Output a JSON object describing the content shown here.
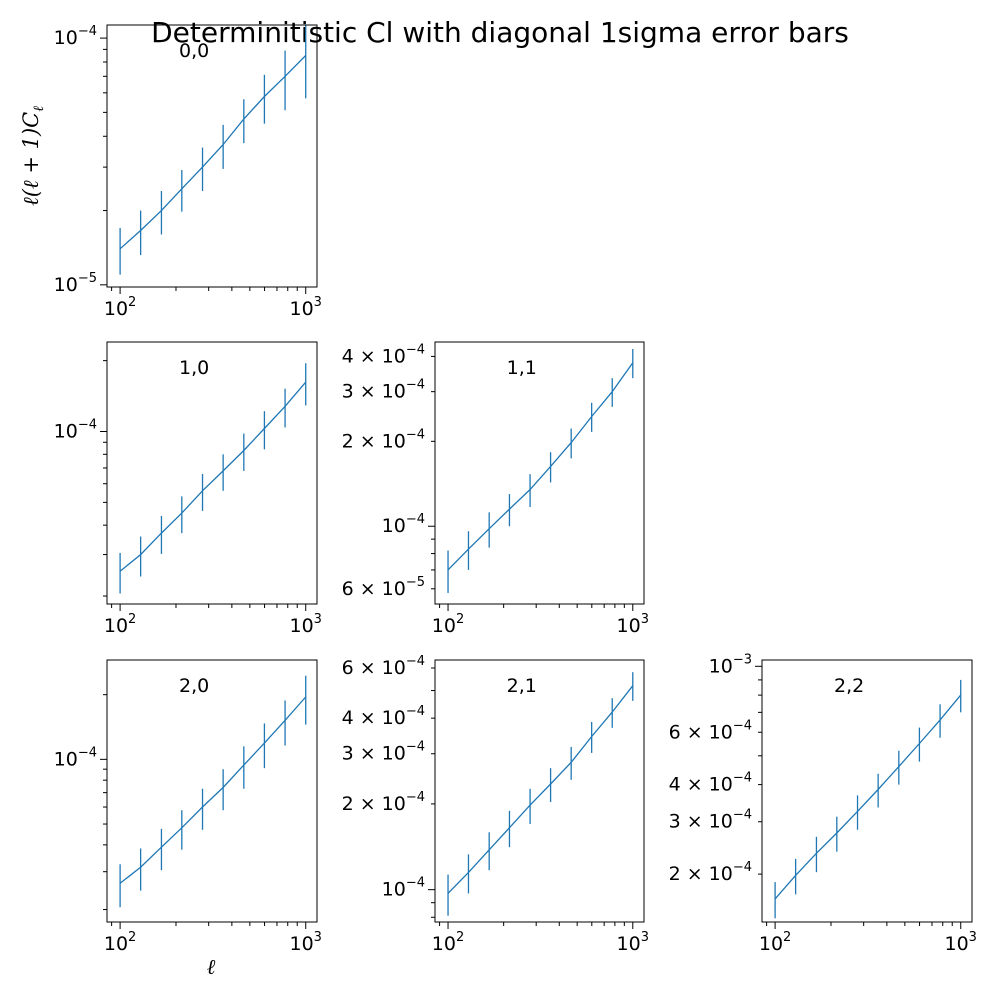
{
  "figure": {
    "title": "Determinitistic Cl with diagonal 1sigma error bars",
    "xlabel": "ℓ",
    "ylabel": "ℓ(ℓ + 1)C_ℓ",
    "line_color": "#1f77b4"
  },
  "chart_data": [
    {
      "type": "line",
      "panel_label": "0,0",
      "xscale": "log",
      "yscale": "log",
      "xlim": [
        85,
        1150
      ],
      "ylim": [
        9.8e-06,
        0.000113
      ],
      "x": [
        100,
        129,
        167,
        215,
        278,
        359,
        464,
        599,
        774,
        1000
      ],
      "y": [
        1.4e-05,
        1.66e-05,
        2e-05,
        2.45e-05,
        3e-05,
        3.7e-05,
        4.7e-05,
        5.8e-05,
        7e-05,
        8.5e-05
      ],
      "yerr": [
        3e-06,
        3.4e-06,
        4e-06,
        4.7e-06,
        6e-06,
        7.5e-06,
        9.5e-06,
        1.3e-05,
        1.9e-05,
        2.8e-05
      ],
      "xticks": [
        {
          "value": 100,
          "base": "10",
          "exp": "2"
        },
        {
          "value": 1000,
          "base": "10",
          "exp": "3"
        }
      ],
      "yticks": [
        {
          "value": 1e-05,
          "base": "10",
          "exp": "−5"
        },
        {
          "value": 0.0001,
          "base": "10",
          "exp": "−4"
        }
      ]
    },
    {
      "type": "line",
      "panel_label": "1,0",
      "xscale": "log",
      "yscale": "log",
      "xlim": [
        85,
        1150
      ],
      "ylim": [
        1.85e-05,
        0.00024
      ],
      "x": [
        100,
        129,
        167,
        215,
        278,
        359,
        464,
        599,
        774,
        1000
      ],
      "y": [
        2.55e-05,
        3e-05,
        3.7e-05,
        4.5e-05,
        5.6e-05,
        6.8e-05,
        8.3e-05,
        0.000103,
        0.000128,
        0.000162
      ],
      "yerr": [
        5e-06,
        5.8e-06,
        6.8e-06,
        8e-06,
        1e-05,
        1.2e-05,
        1.5e-05,
        1.9e-05,
        2.4e-05,
        3.3e-05
      ],
      "xticks": [
        {
          "value": 100,
          "base": "10",
          "exp": "2"
        },
        {
          "value": 1000,
          "base": "10",
          "exp": "3"
        }
      ],
      "yticks": [
        {
          "value": 0.0001,
          "base": "10",
          "exp": "−4"
        }
      ]
    },
    {
      "type": "line",
      "panel_label": "1,1",
      "xscale": "log",
      "yscale": "log",
      "xlim": [
        85,
        1150
      ],
      "ylim": [
        5.3e-05,
        0.00045
      ],
      "x": [
        100,
        129,
        167,
        215,
        278,
        359,
        464,
        599,
        774,
        1000
      ],
      "y": [
        7e-05,
        8.3e-05,
        9.8e-05,
        0.000115,
        0.000135,
        0.000163,
        0.000198,
        0.000245,
        0.0003,
        0.00038
      ],
      "yerr": [
        1.2e-05,
        1.3e-05,
        1.4e-05,
        1.5e-05,
        1.8e-05,
        2e-05,
        2.4e-05,
        2.9e-05,
        3.5e-05,
        4.5e-05
      ],
      "xticks": [
        {
          "value": 100,
          "base": "10",
          "exp": "2"
        },
        {
          "value": 1000,
          "base": "10",
          "exp": "3"
        }
      ],
      "yticks": [
        {
          "value": 6e-05,
          "base": "6 × 10",
          "exp": "−5"
        },
        {
          "value": 0.0001,
          "base": "10",
          "exp": "−4"
        },
        {
          "value": 0.0002,
          "base": "2 × 10",
          "exp": "−4"
        },
        {
          "value": 0.0003,
          "base": "3 × 10",
          "exp": "−4"
        },
        {
          "value": 0.0004,
          "base": "4 × 10",
          "exp": "−4"
        }
      ]
    },
    {
      "type": "line",
      "panel_label": "2,0",
      "xscale": "log",
      "yscale": "log",
      "xlim": [
        85,
        1150
      ],
      "ylim": [
        1.75e-05,
        0.00029
      ],
      "x": [
        100,
        129,
        167,
        215,
        278,
        359,
        464,
        599,
        774,
        1000
      ],
      "y": [
        2.65e-05,
        3.15e-05,
        3.9e-05,
        4.8e-05,
        6e-05,
        7.4e-05,
        9.4e-05,
        0.000119,
        0.000152,
        0.000195
      ],
      "yerr": [
        6e-06,
        7e-06,
        8.5e-06,
        1e-05,
        1.3e-05,
        1.6e-05,
        2.1e-05,
        2.8e-05,
        3.6e-05,
        5e-05
      ],
      "xticks": [
        {
          "value": 100,
          "base": "10",
          "exp": "2"
        },
        {
          "value": 1000,
          "base": "10",
          "exp": "3"
        }
      ],
      "yticks": [
        {
          "value": 0.0001,
          "base": "10",
          "exp": "−4"
        }
      ]
    },
    {
      "type": "line",
      "panel_label": "2,1",
      "xscale": "log",
      "yscale": "log",
      "xlim": [
        85,
        1150
      ],
      "ylim": [
        7.7e-05,
        0.00064
      ],
      "x": [
        100,
        129,
        167,
        215,
        278,
        359,
        464,
        599,
        774,
        1000
      ],
      "y": [
        9.7e-05,
        0.000115,
        0.000138,
        0.000165,
        0.000198,
        0.000235,
        0.00028,
        0.000345,
        0.00042,
        0.00052
      ],
      "yerr": [
        1.6e-05,
        1.8e-05,
        2.1e-05,
        2.4e-05,
        2.8e-05,
        3.2e-05,
        3.7e-05,
        4.3e-05,
        5e-05,
        6e-05
      ],
      "xticks": [
        {
          "value": 100,
          "base": "10",
          "exp": "2"
        },
        {
          "value": 1000,
          "base": "10",
          "exp": "3"
        }
      ],
      "yticks": [
        {
          "value": 0.0001,
          "base": "10",
          "exp": "−4"
        },
        {
          "value": 0.0002,
          "base": "2 × 10",
          "exp": "−4"
        },
        {
          "value": 0.0003,
          "base": "3 × 10",
          "exp": "−4"
        },
        {
          "value": 0.0004,
          "base": "4 × 10",
          "exp": "−4"
        },
        {
          "value": 0.0006,
          "base": "6 × 10",
          "exp": "−4"
        }
      ]
    },
    {
      "type": "line",
      "panel_label": "2,2",
      "xscale": "log",
      "yscale": "log",
      "xlim": [
        85,
        1150
      ],
      "ylim": [
        0.000138,
        0.00105
      ],
      "x": [
        100,
        129,
        167,
        215,
        278,
        359,
        464,
        599,
        774,
        1000
      ],
      "y": [
        0.000165,
        0.000198,
        0.000235,
        0.000275,
        0.000325,
        0.000385,
        0.00046,
        0.00055,
        0.00066,
        0.0008
      ],
      "yerr": [
        2.3e-05,
        2.7e-05,
        3.2e-05,
        3.7e-05,
        4.3e-05,
        5e-05,
        6e-05,
        7.2e-05,
        8.5e-05,
        0.0001
      ],
      "xticks": [
        {
          "value": 100,
          "base": "10",
          "exp": "2"
        },
        {
          "value": 1000,
          "base": "10",
          "exp": "3"
        }
      ],
      "yticks": [
        {
          "value": 0.0002,
          "base": "2 × 10",
          "exp": "−4"
        },
        {
          "value": 0.0003,
          "base": "3 × 10",
          "exp": "−4"
        },
        {
          "value": 0.0004,
          "base": "4 × 10",
          "exp": "−4"
        },
        {
          "value": 0.0006,
          "base": "6 × 10",
          "exp": "−4"
        },
        {
          "value": 0.001,
          "base": "10",
          "exp": "−3"
        }
      ]
    }
  ]
}
